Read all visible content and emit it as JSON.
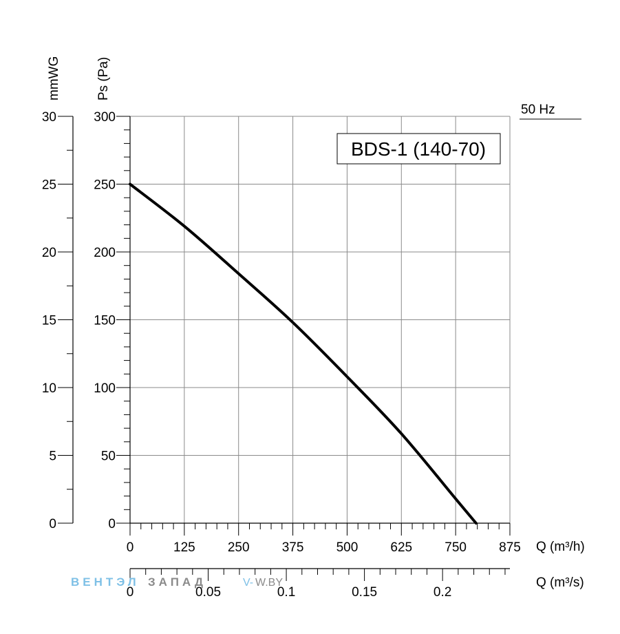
{
  "chart_data": {
    "type": "line",
    "title": "BDS-1 (140-70)",
    "frequency_label": "50 Hz",
    "series": [
      {
        "name": "BDS-1 (140-70)",
        "x": [
          0,
          125,
          250,
          375,
          500,
          625,
          750,
          797
        ],
        "y": [
          250,
          219,
          184,
          148,
          108,
          66,
          18,
          0
        ]
      }
    ],
    "x_axis": {
      "label": "Q (m³/h)",
      "range": [
        0,
        875
      ],
      "ticks": [
        0,
        125,
        250,
        375,
        500,
        625,
        750,
        875
      ],
      "tick_labels": [
        "0",
        "125",
        "250",
        "375",
        "500",
        "625",
        "750",
        "875"
      ]
    },
    "x2_axis": {
      "label": "Q (m³/s)",
      "range": [
        0,
        0.2431
      ],
      "ticks": [
        0,
        0.05,
        0.1,
        0.15,
        0.2
      ],
      "tick_labels": [
        "0",
        "0.05",
        "0.1",
        "0.15",
        "0.2"
      ]
    },
    "y_axis": {
      "label": "Ps (Pa)",
      "range": [
        0,
        300
      ],
      "ticks": [
        0,
        50,
        100,
        150,
        200,
        250,
        300
      ],
      "tick_labels": [
        "0",
        "50",
        "100",
        "150",
        "200",
        "250",
        "300"
      ]
    },
    "y2_axis": {
      "label": "mmWG",
      "range": [
        0,
        30
      ],
      "ticks": [
        0,
        5,
        10,
        15,
        20,
        25,
        30
      ],
      "tick_labels": [
        "0",
        "5",
        "10",
        "15",
        "20",
        "25",
        "30"
      ]
    },
    "grid": true
  },
  "watermark": {
    "brand_blue": "ВЕНТЭЛ",
    "brand_gray": "ЗАПАД",
    "site_blue": "V-",
    "site_gray": "W.BY"
  }
}
